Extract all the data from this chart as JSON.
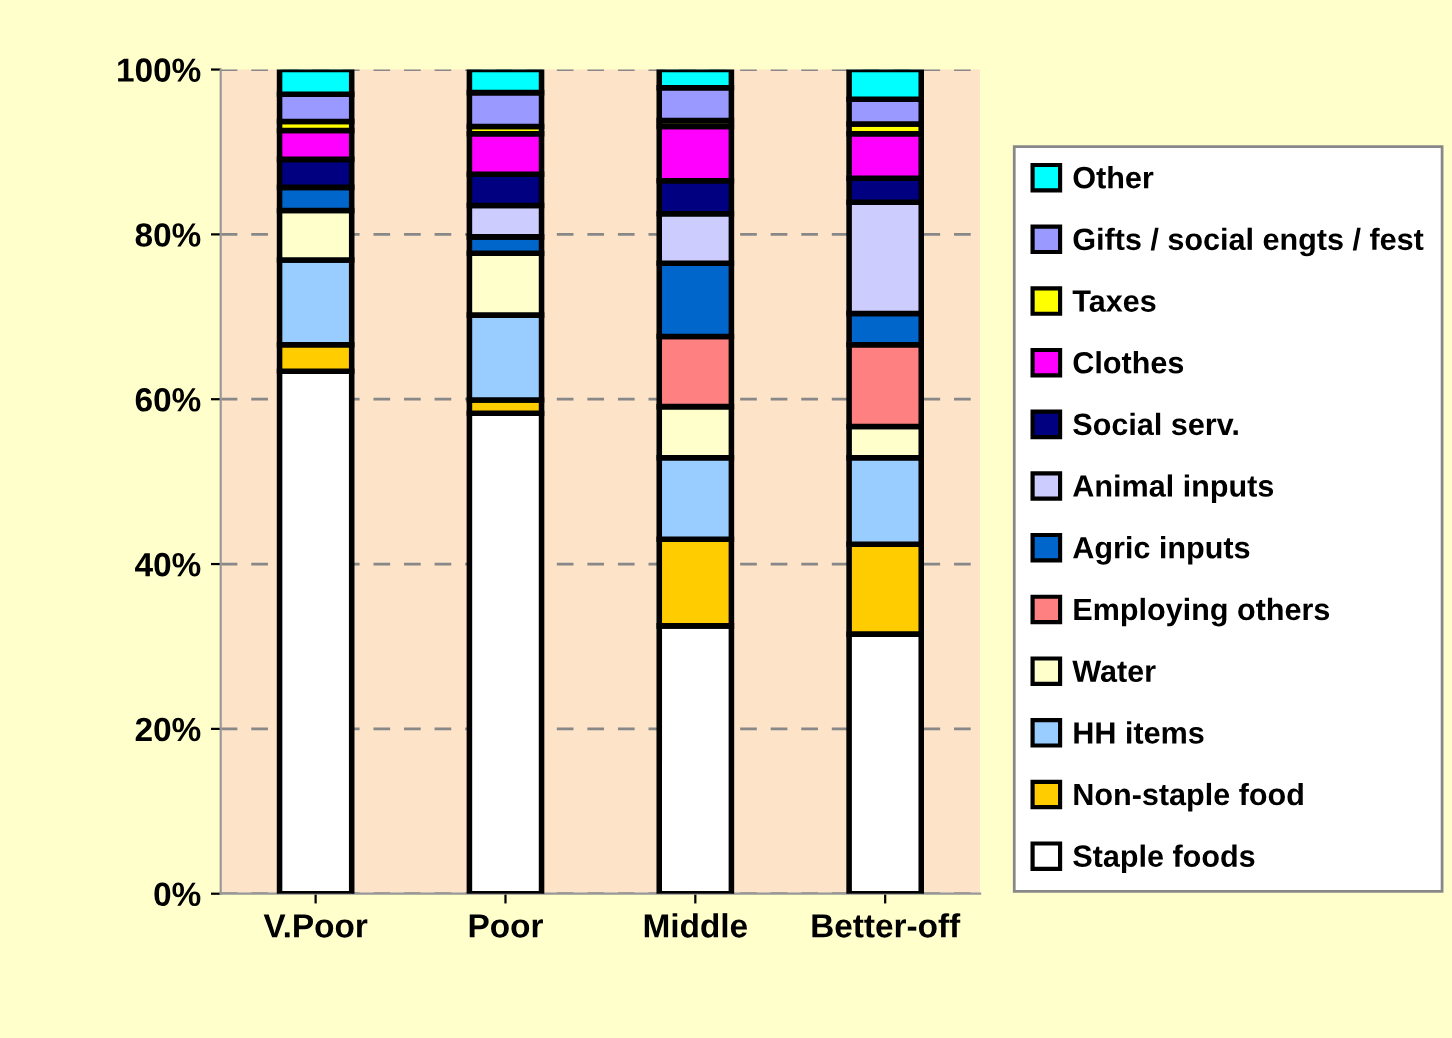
{
  "chart_data": {
    "type": "bar",
    "stacked": true,
    "categories": [
      "V.Poor",
      "Poor",
      "Middle",
      "Better-off"
    ],
    "series": [
      {
        "name": "Staple foods",
        "color": "#ffffff",
        "values": [
          63.4,
          58.3,
          32.5,
          31.5
        ]
      },
      {
        "name": "Non-staple food",
        "color": "#ffcc00",
        "values": [
          3.2,
          1.6,
          10.5,
          10.9
        ]
      },
      {
        "name": "HH items",
        "color": "#99ccff",
        "values": [
          10.3,
          10.3,
          9.9,
          10.5
        ]
      },
      {
        "name": "Water",
        "color": "#ffffcc",
        "values": [
          6.0,
          7.5,
          6.2,
          3.8
        ]
      },
      {
        "name": "Employing others",
        "color": "#ff8080",
        "values": [
          null,
          null,
          8.5,
          9.9
        ]
      },
      {
        "name": "Agric inputs",
        "color": "#0066cc",
        "values": [
          2.8,
          2.0,
          8.9,
          3.8
        ]
      },
      {
        "name": "Animal inputs",
        "color": "#ccccff",
        "values": [
          null,
          3.8,
          6.0,
          13.5
        ]
      },
      {
        "name": "Social serv.",
        "color": "#000080",
        "values": [
          3.4,
          3.8,
          4.0,
          2.9
        ]
      },
      {
        "name": "Clothes",
        "color": "#ff00ff",
        "values": [
          3.5,
          4.9,
          6.6,
          5.4
        ]
      },
      {
        "name": "Taxes",
        "color": "#ffff00",
        "values": [
          1.1,
          0.9,
          0.7,
          1.2
        ]
      },
      {
        "name": "Gifts / social engts / fest",
        "color": "#9999ff",
        "values": [
          3.3,
          4.1,
          4.0,
          3.0
        ]
      },
      {
        "name": "Other",
        "color": "#00ffff",
        "values": [
          3.0,
          2.8,
          2.2,
          3.6
        ]
      }
    ],
    "ylim": [
      0,
      100
    ],
    "yticks": [
      {
        "value": 0,
        "label": "0%"
      },
      {
        "value": 20,
        "label": "20%"
      },
      {
        "value": 40,
        "label": "40%"
      },
      {
        "value": 60,
        "label": "60%"
      },
      {
        "value": 80,
        "label": "80%"
      },
      {
        "value": 100,
        "label": "100%"
      }
    ],
    "grid": "y",
    "legend": "right"
  }
}
